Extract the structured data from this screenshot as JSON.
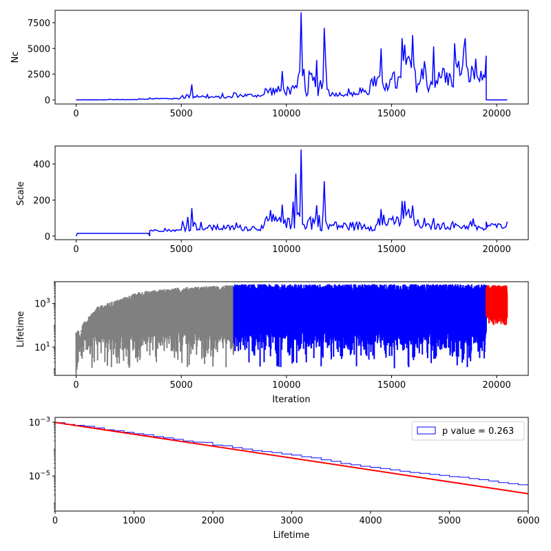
{
  "chart_data": [
    {
      "type": "line",
      "title": "",
      "xlabel": "",
      "ylabel": "Nc",
      "xlim": [
        -1000,
        21500
      ],
      "ylim": [
        -400,
        8700
      ],
      "xticks": [
        0,
        5000,
        10000,
        15000,
        20000
      ],
      "xtick_labels": [
        "0",
        "5000",
        "10000",
        "15000",
        "20000"
      ],
      "yticks": [
        0,
        2500,
        5000,
        7500
      ],
      "ytick_labels": [
        "0",
        "2500",
        "5000",
        "7500"
      ],
      "grid": false,
      "series": [
        {
          "color": "#0000ff",
          "x": [
            0,
            1500,
            3000,
            3500,
            5000,
            5500,
            6000,
            7500,
            9000,
            9800,
            10500,
            10700,
            10900,
            11800,
            12000,
            13500,
            14000,
            14500,
            15000,
            15500,
            16000,
            16500,
            17000,
            17500,
            18000,
            18500,
            19000,
            19500,
            19501,
            20500
          ],
          "y": [
            0,
            20,
            120,
            200,
            300,
            1500,
            400,
            700,
            1100,
            2800,
            1200,
            8500,
            900,
            7000,
            1000,
            1200,
            1800,
            5000,
            2000,
            6000,
            6300,
            2000,
            5200,
            3000,
            5500,
            6000,
            4000,
            4300,
            0,
            0
          ]
        }
      ]
    },
    {
      "type": "line",
      "title": "",
      "xlabel": "",
      "ylabel": "Scale",
      "xlim": [
        -1000,
        21500
      ],
      "ylim": [
        -20,
        500
      ],
      "xticks": [
        0,
        5000,
        10000,
        15000,
        20000
      ],
      "xtick_labels": [
        "0",
        "5000",
        "10000",
        "15000",
        "20000"
      ],
      "yticks": [
        0,
        200,
        400
      ],
      "ytick_labels": [
        "0",
        "200",
        "400"
      ],
      "grid": false,
      "series": [
        {
          "color": "#0000ff",
          "x": [
            0,
            3500,
            3500,
            5000,
            5500,
            6000,
            9000,
            9800,
            10000,
            10700,
            10900,
            11800,
            12000,
            14500,
            15000,
            15500,
            16000,
            16500,
            17000,
            19000,
            19500,
            19500,
            20500
          ],
          "y": [
            0,
            0,
            30,
            35,
            155,
            40,
            95,
            175,
            45,
            480,
            40,
            305,
            40,
            150,
            90,
            195,
            170,
            60,
            100,
            60,
            40,
            80,
            80
          ]
        }
      ]
    },
    {
      "type": "line",
      "title": "",
      "xlabel": "Iteration",
      "ylabel": "Lifetime",
      "yscale": "log",
      "xlim": [
        -1000,
        21500
      ],
      "ylim": [
        0.5,
        10000
      ],
      "xticks": [
        0,
        5000,
        10000,
        15000,
        20000
      ],
      "xtick_labels": [
        "0",
        "5000",
        "10000",
        "15000",
        "20000"
      ],
      "yticks": [
        10,
        1000
      ],
      "ytick_labels": [
        "10^1",
        "10^3"
      ],
      "grid": false,
      "series": [
        {
          "color": "#808080",
          "x_range": [
            0,
            7500
          ],
          "envelope_upper": [
            [
              0,
              1
            ],
            [
              300,
              80
            ],
            [
              1000,
              500
            ],
            [
              3000,
              2500
            ],
            [
              5000,
              4000
            ],
            [
              7500,
              5000
            ]
          ],
          "lower": 1
        },
        {
          "color": "#0000ff",
          "x_range": [
            7500,
            19500
          ],
          "envelope_upper": [
            [
              7500,
              5500
            ],
            [
              19500,
              5500
            ]
          ],
          "lower": 1
        },
        {
          "color": "#ff0000",
          "x_range": [
            19500,
            20500
          ],
          "envelope_upper": [
            [
              19500,
              5000
            ],
            [
              20500,
              5000
            ]
          ],
          "lower": 100
        }
      ]
    },
    {
      "type": "line",
      "title": "",
      "xlabel": "Lifetime",
      "ylabel": "",
      "yscale": "log",
      "xlim": [
        0,
        6000
      ],
      "ylim": [
        5e-07,
        0.0015
      ],
      "xticks": [
        0,
        1000,
        2000,
        3000,
        4000,
        5000,
        6000
      ],
      "xtick_labels": [
        "0",
        "1000",
        "2000",
        "3000",
        "4000",
        "5000",
        "6000"
      ],
      "yticks": [
        1e-05,
        0.001
      ],
      "ytick_labels": [
        "10^-5",
        "10^-3"
      ],
      "grid": false,
      "legend": "top-right",
      "series": [
        {
          "name": "p value = 0.263",
          "kind": "histogram",
          "color": "#0000ff",
          "bin_width": 125,
          "values": [
            0.00095,
            0.00082,
            0.00076,
            0.0007,
            0.00061,
            0.00052,
            0.00048,
            0.00042,
            0.00037,
            0.00034,
            0.00029,
            0.00026,
            0.00023,
            0.0002,
            0.00018,
            0.000178,
            0.00014,
            0.000132,
            0.000113,
            0.0001,
            8.8e-05,
            8e-05,
            7.4e-05,
            6.6e-05,
            6e-05,
            5.2e-05,
            4.7e-05,
            4e-05,
            3.5e-05,
            2.9e-05,
            2.6e-05,
            2.3e-05,
            2.1e-05,
            1.9e-05,
            1.7e-05,
            1.5e-05,
            1.35e-05,
            1.25e-05,
            1.15e-05,
            1.05e-05,
            9.5e-06,
            9e-06,
            8e-06,
            7.3e-06,
            6.5e-06,
            5.7e-06,
            5.2e-06,
            4.7e-06
          ]
        },
        {
          "name": "",
          "kind": "line",
          "color": "#ff0000",
          "x": [
            0,
            6000
          ],
          "y": [
            0.00098,
            2.2e-06
          ]
        }
      ]
    }
  ]
}
